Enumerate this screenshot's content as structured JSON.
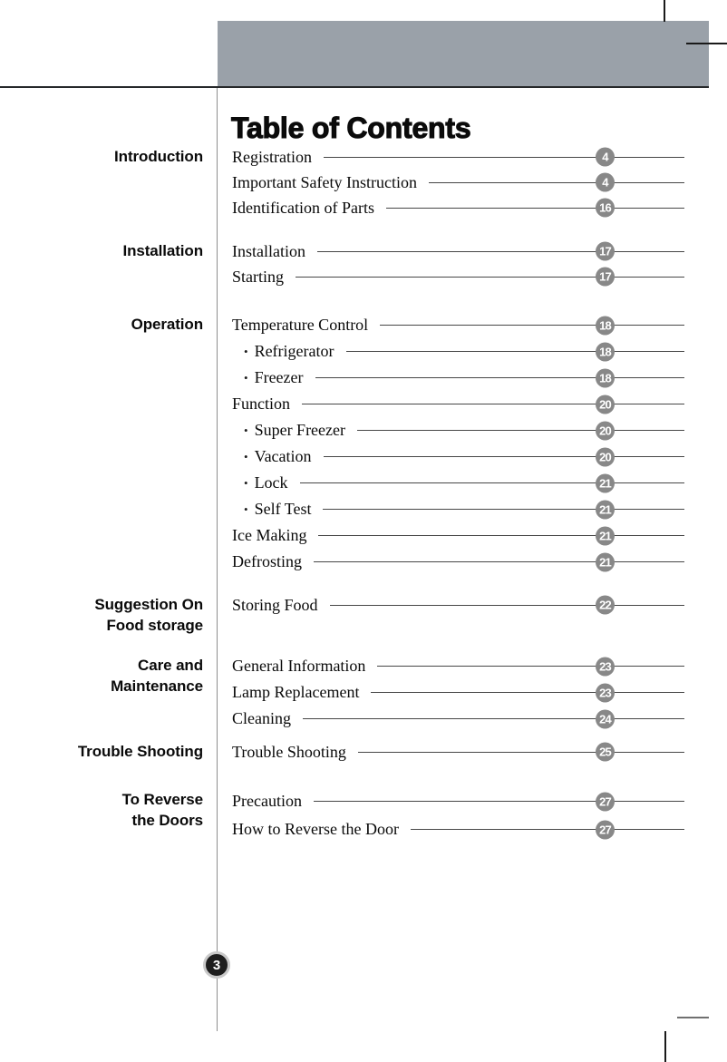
{
  "page": {
    "title": "Table of Contents",
    "page_number": "3"
  },
  "colors": {
    "header_bar": "#9aa1a9",
    "page_badge": "#888888",
    "footer_badge_fill": "#1e1e1e",
    "footer_badge_ring": "#c9c9c9",
    "leader_line": "#474747"
  },
  "sections": [
    {
      "label_lines": [
        "Introduction"
      ],
      "entries": [
        {
          "label": "Registration",
          "page": "4",
          "bullet": false
        },
        {
          "label": "Important Safety Instruction",
          "page": "4",
          "bullet": false
        },
        {
          "label": "Identification of Parts",
          "page": "16",
          "bullet": false
        }
      ]
    },
    {
      "label_lines": [
        "Installation"
      ],
      "entries": [
        {
          "label": "Installation",
          "page": "17",
          "bullet": false
        },
        {
          "label": "Starting",
          "page": "17",
          "bullet": false
        }
      ]
    },
    {
      "label_lines": [
        "Operation"
      ],
      "entries": [
        {
          "label": "Temperature Control",
          "page": "18",
          "bullet": false
        },
        {
          "label": "Refrigerator",
          "page": "18",
          "bullet": true
        },
        {
          "label": "Freezer",
          "page": "18",
          "bullet": true
        },
        {
          "label": "Function",
          "page": "20",
          "bullet": false
        },
        {
          "label": "Super Freezer",
          "page": "20",
          "bullet": true
        },
        {
          "label": "Vacation",
          "page": "20",
          "bullet": true
        },
        {
          "label": "Lock",
          "page": "21",
          "bullet": true
        },
        {
          "label": "Self Test",
          "page": "21",
          "bullet": true
        },
        {
          "label": "Ice Making",
          "page": "21",
          "bullet": false
        },
        {
          "label": "Defrosting",
          "page": "21",
          "bullet": false
        }
      ]
    },
    {
      "label_lines": [
        "Suggestion On",
        "Food storage"
      ],
      "entries": [
        {
          "label": "Storing Food",
          "page": "22",
          "bullet": false
        }
      ]
    },
    {
      "label_lines": [
        "Care and",
        "Maintenance"
      ],
      "entries": [
        {
          "label": "General Information",
          "page": "23",
          "bullet": false
        },
        {
          "label": "Lamp Replacement",
          "page": "23",
          "bullet": false
        },
        {
          "label": "Cleaning",
          "page": "24",
          "bullet": false
        }
      ]
    },
    {
      "label_lines": [
        "Trouble Shooting"
      ],
      "entries": [
        {
          "label": "Trouble Shooting",
          "page": "25",
          "bullet": false
        }
      ]
    },
    {
      "label_lines": [
        "To Reverse",
        "the Doors"
      ],
      "entries": [
        {
          "label": "Precaution",
          "page": "27",
          "bullet": false
        },
        {
          "label": "How to Reverse the Door",
          "page": "27",
          "bullet": false
        }
      ]
    }
  ]
}
